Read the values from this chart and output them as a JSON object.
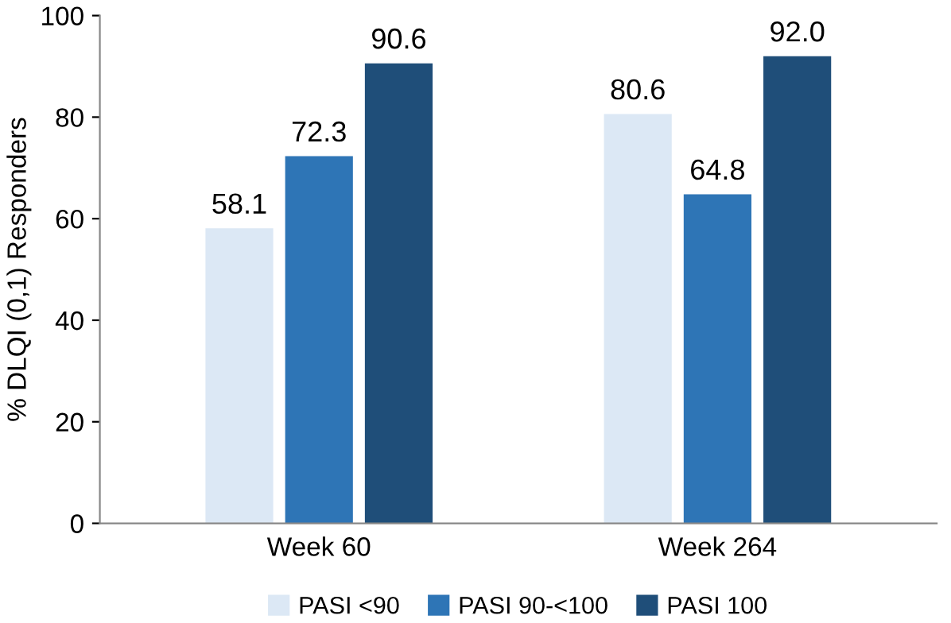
{
  "chart_data": {
    "type": "bar",
    "ylabel": "% DLQI (0,1) Responders",
    "categories": [
      "Week 60",
      "Week 264"
    ],
    "series": [
      {
        "name": "PASI <90",
        "color": "#dce8f5",
        "values": [
          58.1,
          80.6
        ],
        "value_labels": [
          "58.1",
          "80.6"
        ]
      },
      {
        "name": "PASI 90-<100",
        "color": "#2e75b6",
        "values": [
          72.3,
          64.8
        ],
        "value_labels": [
          "72.3",
          "64.8"
        ]
      },
      {
        "name": "PASI 100",
        "color": "#1f4e79",
        "values": [
          90.6,
          92.0
        ],
        "value_labels": [
          "90.6",
          "92.0"
        ]
      }
    ],
    "ylim": [
      0,
      100
    ],
    "yticks": [
      0,
      20,
      40,
      60,
      80,
      100
    ],
    "grid": false,
    "legend": "bottom"
  }
}
